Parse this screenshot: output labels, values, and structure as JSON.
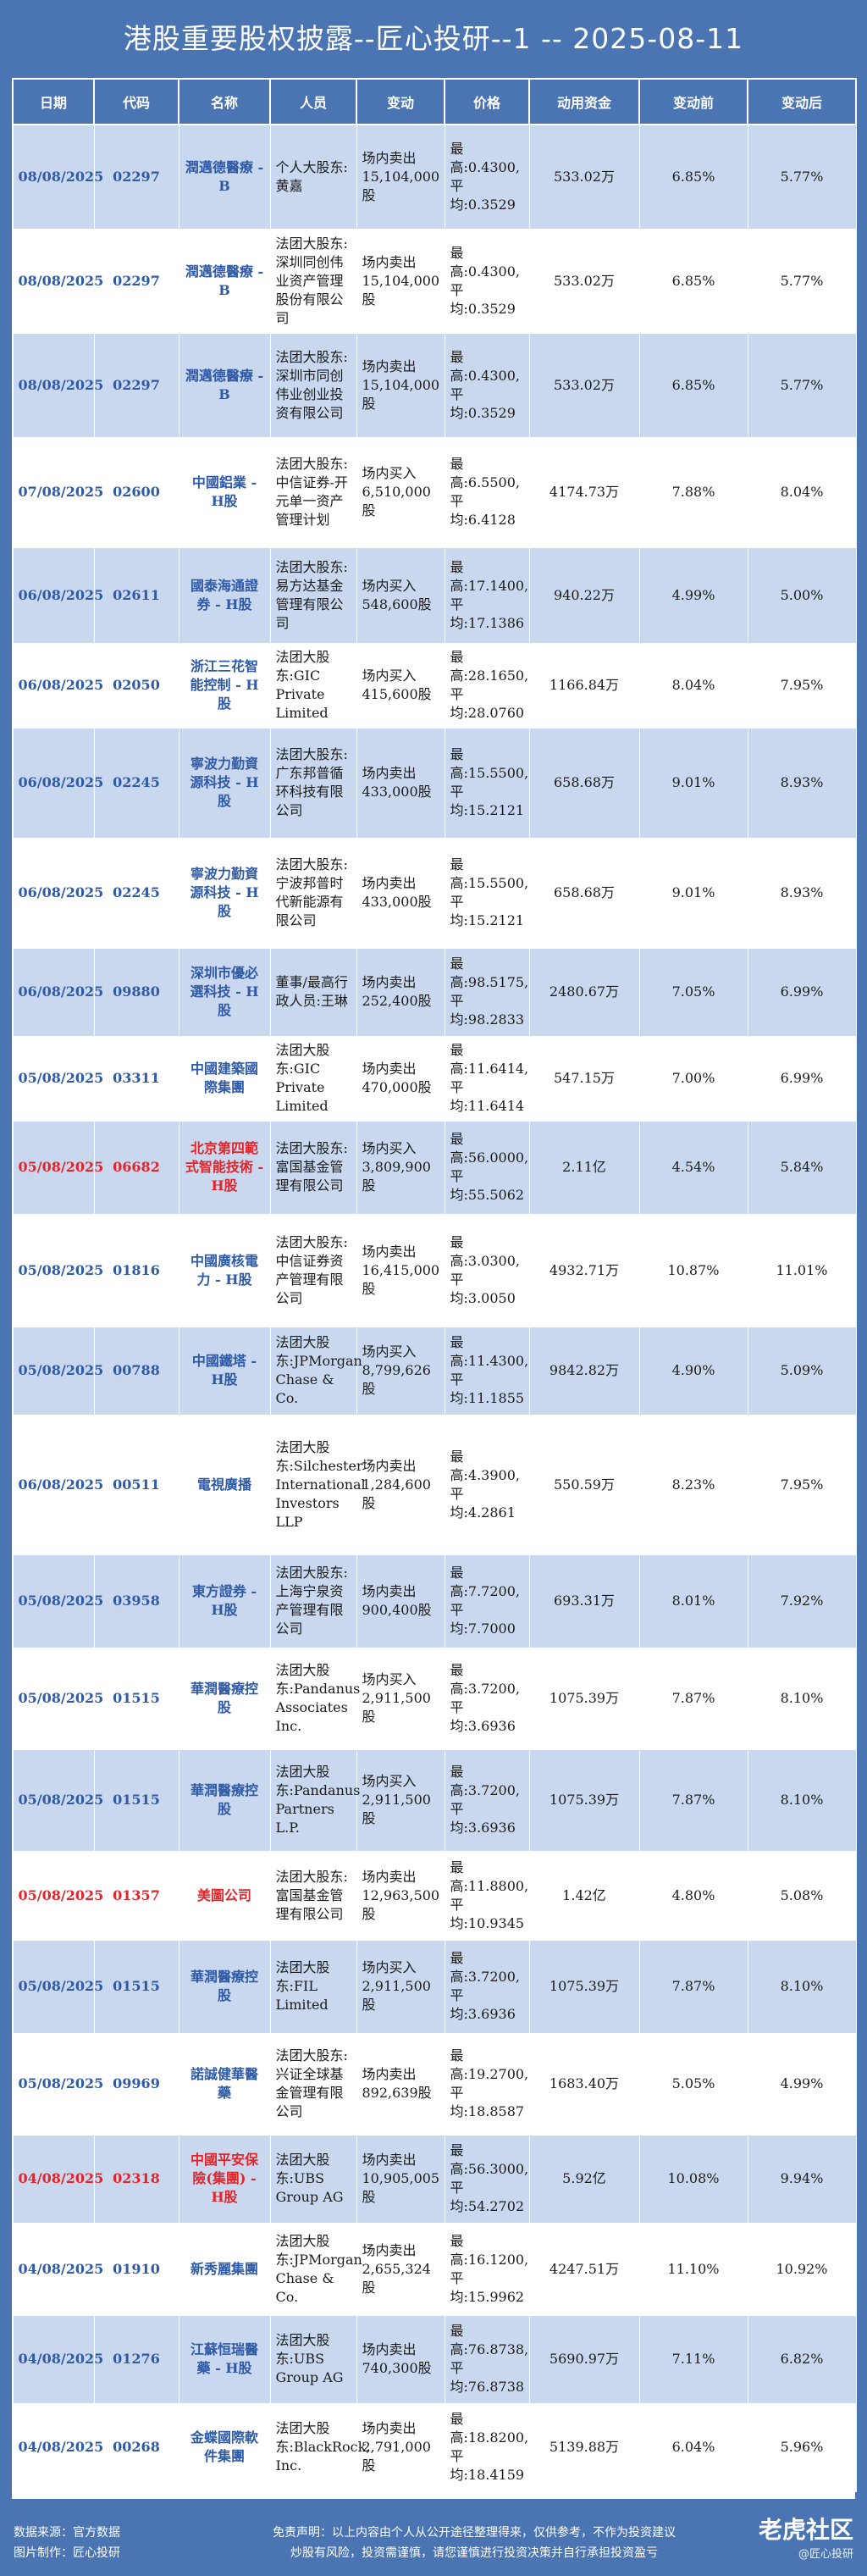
{
  "title": "港股重要股权披露--匠心投研--1 -- 2025-08-11",
  "headers": [
    "日期",
    "代码",
    "名称",
    "人员",
    "变动",
    "价格",
    "动用资金",
    "变动前",
    "变动后"
  ],
  "rows": [
    {
      "date": "08/08/2025",
      "code": "02297",
      "name": "潤邁德醫療 - B",
      "person": "个人大股东:黄嘉",
      "change": "场内卖出15,104,000股",
      "price": "最高:0.4300,平均:0.3529",
      "amount": "533.02万",
      "before": "6.85%",
      "after": "5.77%",
      "red": false
    },
    {
      "date": "08/08/2025",
      "code": "02297",
      "name": "潤邁德醫療 - B",
      "person": "法团大股东:深圳同创伟业资产管理股份有限公司",
      "change": "场内卖出15,104,000股",
      "price": "最高:0.4300,平均:0.3529",
      "amount": "533.02万",
      "before": "6.85%",
      "after": "5.77%",
      "red": false
    },
    {
      "date": "08/08/2025",
      "code": "02297",
      "name": "潤邁德醫療 - B",
      "person": "法团大股东:深圳市同创伟业创业投资有限公司",
      "change": "场内卖出15,104,000股",
      "price": "最高:0.4300,平均:0.3529",
      "amount": "533.02万",
      "before": "6.85%",
      "after": "5.77%",
      "red": false
    },
    {
      "date": "07/08/2025",
      "code": "02600",
      "name": "中國鋁業 - H股",
      "person": "法团大股东:中信证券-开元单一资产管理计划",
      "change": "场内买入6,510,000股",
      "price": "最高:6.5500,平均:6.4128",
      "amount": "4174.73万",
      "before": "7.88%",
      "after": "8.04%",
      "red": false
    },
    {
      "date": "06/08/2025",
      "code": "02611",
      "name": "國泰海通證券 - H股",
      "person": "法团大股东:易方达基金管理有限公司",
      "change": "场内买入548,600股",
      "price": "最高:17.1400,平均:17.1386",
      "amount": "940.22万",
      "before": "4.99%",
      "after": "5.00%",
      "red": false
    },
    {
      "date": "06/08/2025",
      "code": "02050",
      "name": "浙江三花智能控制 - H股",
      "person": "法团大股东:GIC Private Limited",
      "change": "场内买入415,600股",
      "price": "最高:28.1650,平均:28.0760",
      "amount": "1166.84万",
      "before": "8.04%",
      "after": "7.95%",
      "red": false
    },
    {
      "date": "06/08/2025",
      "code": "02245",
      "name": "寧波力勤資源科技 - H股",
      "person": "法团大股东:广东邦普循环科技有限公司",
      "change": "场内卖出433,000股",
      "price": "最高:15.5500,平均:15.2121",
      "amount": "658.68万",
      "before": "9.01%",
      "after": "8.93%",
      "red": false
    },
    {
      "date": "06/08/2025",
      "code": "02245",
      "name": "寧波力勤資源科技 - H股",
      "person": "法团大股东:宁波邦普时代新能源有限公司",
      "change": "场内卖出433,000股",
      "price": "最高:15.5500,平均:15.2121",
      "amount": "658.68万",
      "before": "9.01%",
      "after": "8.93%",
      "red": false
    },
    {
      "date": "06/08/2025",
      "code": "09880",
      "name": "深圳市優必選科技 - H股",
      "person": "董事/最高行政人员:王琳",
      "change": "场内卖出252,400股",
      "price": "最高:98.5175,平均:98.2833",
      "amount": "2480.67万",
      "before": "7.05%",
      "after": "6.99%",
      "red": false
    },
    {
      "date": "05/08/2025",
      "code": "03311",
      "name": "中國建築國際集團",
      "person": "法团大股东:GIC Private Limited",
      "change": "场内卖出470,000股",
      "price": "最高:11.6414,平均:11.6414",
      "amount": "547.15万",
      "before": "7.00%",
      "after": "6.99%",
      "red": false
    },
    {
      "date": "05/08/2025",
      "code": "06682",
      "name": "北京第四範式智能技術 - H股",
      "person": "法团大股东:富国基金管理有限公司",
      "change": "场内买入3,809,900股",
      "price": "最高:56.0000,平均:55.5062",
      "amount": "2.11亿",
      "before": "4.54%",
      "after": "5.84%",
      "red": true
    },
    {
      "date": "05/08/2025",
      "code": "01816",
      "name": "中國廣核電力 - H股",
      "person": "法团大股东:中信证券资产管理有限公司",
      "change": "场内卖出16,415,000股",
      "price": "最高:3.0300,平均:3.0050",
      "amount": "4932.71万",
      "before": "10.87%",
      "after": "11.01%",
      "red": false
    },
    {
      "date": "05/08/2025",
      "code": "00788",
      "name": "中國鐵塔 - H股",
      "person": "法团大股东:JPMorgan Chase & Co.",
      "change": "场内买入8,799,626股",
      "price": "最高:11.4300,平均:11.1855",
      "amount": "9842.82万",
      "before": "4.90%",
      "after": "5.09%",
      "red": false
    },
    {
      "date": "06/08/2025",
      "code": "00511",
      "name": "電視廣播",
      "person": "法团大股东:Silchester International Investors LLP",
      "change": "场内卖出1,284,600股",
      "price": "最高:4.3900,平均:4.2861",
      "amount": "550.59万",
      "before": "8.23%",
      "after": "7.95%",
      "red": false
    },
    {
      "date": "05/08/2025",
      "code": "03958",
      "name": "東方證券 - H股",
      "person": "法团大股东:上海宁泉资产管理有限公司",
      "change": "场内卖出900,400股",
      "price": "最高:7.7200,平均:7.7000",
      "amount": "693.31万",
      "before": "8.01%",
      "after": "7.92%",
      "red": false
    },
    {
      "date": "05/08/2025",
      "code": "01515",
      "name": "華潤醫療控股",
      "person": "法团大股东:Pandanus Associates Inc.",
      "change": "场内买入2,911,500股",
      "price": "最高:3.7200,平均:3.6936",
      "amount": "1075.39万",
      "before": "7.87%",
      "after": "8.10%",
      "red": false
    },
    {
      "date": "05/08/2025",
      "code": "01515",
      "name": "華潤醫療控股",
      "person": "法团大股东:Pandanus Partners L.P.",
      "change": "场内买入2,911,500股",
      "price": "最高:3.7200,平均:3.6936",
      "amount": "1075.39万",
      "before": "7.87%",
      "after": "8.10%",
      "red": false
    },
    {
      "date": "05/08/2025",
      "code": "01357",
      "name": "美圖公司",
      "person": "法团大股东:富国基金管理有限公司",
      "change": "场内卖出12,963,500股",
      "price": "最高:11.8800,平均:10.9345",
      "amount": "1.42亿",
      "before": "4.80%",
      "after": "5.08%",
      "red": true
    },
    {
      "date": "05/08/2025",
      "code": "01515",
      "name": "華潤醫療控股",
      "person": "法团大股东:FIL Limited",
      "change": "场内买入2,911,500股",
      "price": "最高:3.7200,平均:3.6936",
      "amount": "1075.39万",
      "before": "7.87%",
      "after": "8.10%",
      "red": false
    },
    {
      "date": "05/08/2025",
      "code": "09969",
      "name": "諾誠健華醫藥",
      "person": "法团大股东:兴证全球基金管理有限公司",
      "change": "场内卖出892,639股",
      "price": "最高:19.2700,平均:18.8587",
      "amount": "1683.40万",
      "before": "5.05%",
      "after": "4.99%",
      "red": false
    },
    {
      "date": "04/08/2025",
      "code": "02318",
      "name": "中國平安保險(集團) - H股",
      "person": "法团大股东:UBS Group AG",
      "change": "场内卖出10,905,005股",
      "price": "最高:56.3000,平均:54.2702",
      "amount": "5.92亿",
      "before": "10.08%",
      "after": "9.94%",
      "red": true
    },
    {
      "date": "04/08/2025",
      "code": "01910",
      "name": "新秀麗集團",
      "person": "法团大股东:JPMorgan Chase & Co.",
      "change": "场内卖出2,655,324股",
      "price": "最高:16.1200,平均:15.9962",
      "amount": "4247.51万",
      "before": "11.10%",
      "after": "10.92%",
      "red": false
    },
    {
      "date": "04/08/2025",
      "code": "01276",
      "name": "江蘇恒瑞醫藥 - H股",
      "person": "法团大股东:UBS Group AG",
      "change": "场内卖出740,300股",
      "price": "最高:76.8738,平均:76.8738",
      "amount": "5690.97万",
      "before": "7.11%",
      "after": "6.82%",
      "red": false
    },
    {
      "date": "04/08/2025",
      "code": "00268",
      "name": "金蝶國際軟件集團",
      "person": "法团大股东:BlackRock, Inc.",
      "change": "场内卖出2,791,000股",
      "price": "最高:18.8200,平均:18.4159",
      "amount": "5139.88万",
      "before": "6.04%",
      "after": "5.96%",
      "red": false
    }
  ],
  "footer": {
    "source": "数据来源：官方数据",
    "producer": "图片制作：匠心投研",
    "disclaimer_line1": "免责声明：以上内容由个人从公开途径整理得来，仅供参考，不作为投资建议",
    "disclaimer_line2": "炒股有风险，投资需谨慎，请您谨慎进行投资决策并自行承担投资盈亏",
    "logo": "老虎社区",
    "handle": "@匠心投研"
  }
}
